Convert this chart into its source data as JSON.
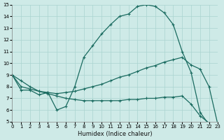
{
  "xlabel": "Humidex (Indice chaleur)",
  "xlim": [
    0,
    23
  ],
  "ylim": [
    5,
    15
  ],
  "xticks": [
    0,
    1,
    2,
    3,
    4,
    5,
    6,
    7,
    8,
    9,
    10,
    11,
    12,
    13,
    14,
    15,
    16,
    17,
    18,
    19,
    20,
    21,
    22,
    23
  ],
  "yticks": [
    5,
    6,
    7,
    8,
    9,
    10,
    11,
    12,
    13,
    14,
    15
  ],
  "bg_color": "#ceeae7",
  "line_color": "#1a6b60",
  "grid_color": "#aad4d0",
  "curve1_x": [
    0,
    1,
    2,
    3,
    4,
    5,
    6,
    7,
    8,
    9,
    10,
    11,
    12,
    13,
    14,
    15,
    16,
    17,
    18,
    19,
    20,
    21,
    22,
    23
  ],
  "curve1_y": [
    9.0,
    7.7,
    7.7,
    7.3,
    7.5,
    6.0,
    6.3,
    8.0,
    10.5,
    11.5,
    12.5,
    13.3,
    14.0,
    14.2,
    14.85,
    15.0,
    14.85,
    14.3,
    13.3,
    11.0,
    9.2,
    5.8,
    4.75,
    4.7
  ],
  "curve2_x": [
    0,
    1,
    2,
    3,
    4,
    5,
    6,
    7,
    8,
    9,
    10,
    11,
    12,
    13,
    14,
    15,
    16,
    17,
    18,
    19,
    20,
    21,
    22,
    23
  ],
  "curve2_y": [
    9.0,
    8.0,
    7.8,
    7.6,
    7.5,
    7.4,
    7.5,
    7.6,
    7.8,
    8.0,
    8.2,
    8.5,
    8.8,
    9.0,
    9.3,
    9.6,
    9.8,
    10.1,
    10.3,
    10.5,
    9.85,
    9.5,
    8.0,
    4.7
  ],
  "curve3_x": [
    0,
    1,
    2,
    3,
    4,
    5,
    6,
    7,
    8,
    9,
    10,
    11,
    12,
    13,
    14,
    15,
    16,
    17,
    18,
    19,
    20,
    21,
    22,
    23
  ],
  "curve3_y": [
    9.0,
    8.5,
    8.0,
    7.6,
    7.4,
    7.2,
    7.0,
    6.9,
    6.8,
    6.8,
    6.8,
    6.8,
    6.8,
    6.9,
    6.9,
    7.0,
    7.0,
    7.1,
    7.1,
    7.2,
    6.5,
    5.5,
    4.9,
    4.7
  ]
}
